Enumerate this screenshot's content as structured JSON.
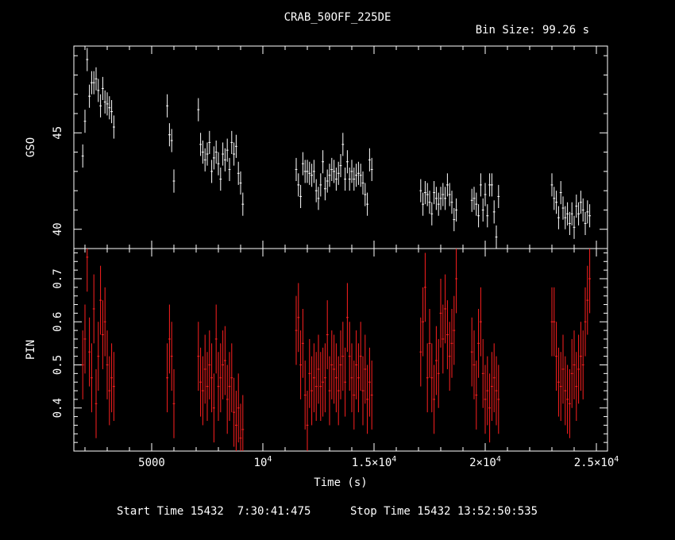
{
  "title": "CRAB_50OFF_225DE",
  "bin_size_label": "Bin Size: 99.26 s",
  "footer": {
    "start": "Start Time 15432  7:30:41:475",
    "stop": "Stop Time 15432 13:52:50:535"
  },
  "chart_data": [
    {
      "type": "scatter",
      "panel": "top",
      "ylabel": "GSO",
      "xlabel": "",
      "xlim": [
        1500,
        25500
      ],
      "ylim": [
        39.0,
        49.5
      ],
      "yticks": [
        {
          "v": 40,
          "label": "40"
        },
        {
          "v": 45,
          "label": "45"
        }
      ],
      "color": "#ffffff",
      "series": [
        {
          "x": [
            1900,
            2000,
            2100,
            2200,
            2300,
            2400,
            2500,
            2600,
            2700,
            2800,
            2900,
            3000,
            3100,
            3200,
            3300,
            5700,
            5800,
            5900,
            6000,
            7100,
            7200,
            7300,
            7400,
            7500,
            7600,
            7700,
            7800,
            7900,
            8000,
            8100,
            8200,
            8300,
            8400,
            8500,
            8600,
            8700,
            8800,
            8900,
            9000,
            9100,
            11500,
            11600,
            11700,
            11800,
            11900,
            12000,
            12100,
            12200,
            12300,
            12400,
            12500,
            12600,
            12700,
            12800,
            12900,
            13000,
            13100,
            13200,
            13300,
            13400,
            13500,
            13600,
            13700,
            13800,
            13900,
            14000,
            14100,
            14200,
            14300,
            14400,
            14500,
            14600,
            14700,
            14800,
            14900,
            17100,
            17200,
            17300,
            17400,
            17500,
            17600,
            17700,
            17800,
            17900,
            18000,
            18100,
            18200,
            18300,
            18400,
            18500,
            18600,
            18700,
            19400,
            19500,
            19600,
            19700,
            19800,
            19900,
            20000,
            20100,
            20200,
            20300,
            20400,
            20500,
            20600,
            23000,
            23100,
            23200,
            23300,
            23400,
            23500,
            23600,
            23700,
            23800,
            23900,
            24000,
            24100,
            24200,
            24300,
            24400,
            24500,
            24600,
            24700
          ],
          "y": [
            43.8,
            45.6,
            48.8,
            46.9,
            47.6,
            47.6,
            47.8,
            47.2,
            46.4,
            47.3,
            46.6,
            46.5,
            46.3,
            46.1,
            45.3,
            46.4,
            44.9,
            44.6,
            42.5,
            46.2,
            44.4,
            44.0,
            43.6,
            43.9,
            44.5,
            43.0,
            43.7,
            44.0,
            43.4,
            42.6,
            43.9,
            43.6,
            44.1,
            43.1,
            44.5,
            43.9,
            44.3,
            42.9,
            42.4,
            41.3,
            43.1,
            42.3,
            41.7,
            43.4,
            43.0,
            43.0,
            42.9,
            42.8,
            43.0,
            42.0,
            41.6,
            42.3,
            43.5,
            42.1,
            42.5,
            42.8,
            43.1,
            43.0,
            42.6,
            42.9,
            43.3,
            44.4,
            42.6,
            43.5,
            42.6,
            43.0,
            42.6,
            42.8,
            42.9,
            42.8,
            42.4,
            41.8,
            41.3,
            43.6,
            43.1,
            42.0,
            41.3,
            41.9,
            41.8,
            41.4,
            40.8,
            41.9,
            41.6,
            41.3,
            41.6,
            41.8,
            41.6,
            42.3,
            41.8,
            41.4,
            40.5,
            41.0,
            41.5,
            41.6,
            41.3,
            40.7,
            42.3,
            41.0,
            41.8,
            40.7,
            42.3,
            42.3,
            40.9,
            39.6,
            41.7,
            42.3,
            41.6,
            41.4,
            40.6,
            41.9,
            41.1,
            40.6,
            40.8,
            40.3,
            40.8,
            40.1,
            41.2,
            40.8,
            41.4,
            41.0,
            40.3,
            40.9,
            40.7
          ],
          "yerr": [
            0.6,
            0.6,
            0.6,
            0.6,
            0.6,
            0.6,
            0.6,
            0.6,
            0.6,
            0.6,
            0.6,
            0.6,
            0.6,
            0.6,
            0.6,
            0.6,
            0.6,
            0.6,
            0.6,
            0.6,
            0.6,
            0.6,
            0.6,
            0.6,
            0.6,
            0.6,
            0.6,
            0.6,
            0.6,
            0.6,
            0.6,
            0.6,
            0.6,
            0.6,
            0.6,
            0.6,
            0.6,
            0.6,
            0.6,
            0.6,
            0.6,
            0.6,
            0.6,
            0.6,
            0.6,
            0.6,
            0.6,
            0.6,
            0.6,
            0.6,
            0.6,
            0.6,
            0.6,
            0.6,
            0.6,
            0.6,
            0.6,
            0.6,
            0.6,
            0.6,
            0.6,
            0.6,
            0.6,
            0.6,
            0.6,
            0.6,
            0.6,
            0.6,
            0.6,
            0.6,
            0.6,
            0.6,
            0.6,
            0.6,
            0.6,
            0.6,
            0.6,
            0.6,
            0.6,
            0.6,
            0.6,
            0.6,
            0.6,
            0.6,
            0.6,
            0.6,
            0.6,
            0.6,
            0.6,
            0.6,
            0.6,
            0.6,
            0.6,
            0.6,
            0.6,
            0.6,
            0.6,
            0.6,
            0.6,
            0.6,
            0.6,
            0.6,
            0.6,
            0.6,
            0.6,
            0.6,
            0.6,
            0.6,
            0.6,
            0.6,
            0.6,
            0.6,
            0.6,
            0.6,
            0.6,
            0.6,
            0.6,
            0.6,
            0.6,
            0.6,
            0.6,
            0.6,
            0.6
          ]
        }
      ]
    },
    {
      "type": "scatter",
      "panel": "bottom",
      "ylabel": "PIN",
      "xlabel": "Time (s)",
      "xlim": [
        1500,
        25500
      ],
      "ylim": [
        0.3,
        0.77
      ],
      "yticks": [
        {
          "v": 0.4,
          "label": "0.4"
        },
        {
          "v": 0.5,
          "label": "0.5"
        },
        {
          "v": 0.6,
          "label": "0.6"
        },
        {
          "v": 0.7,
          "label": "0.7"
        }
      ],
      "xticks": [
        {
          "v": 5000,
          "label": "5000"
        },
        {
          "v": 10000,
          "label": "10",
          "sup": "4"
        },
        {
          "v": 15000,
          "label": "1.5×10",
          "sup": "4"
        },
        {
          "v": 20000,
          "label": "2×10",
          "sup": "4"
        },
        {
          "v": 25000,
          "label": "2.5×10",
          "sup": "4"
        }
      ],
      "color": "#ff2020",
      "series": [
        {
          "x": [
            1900,
            2000,
            2100,
            2200,
            2300,
            2400,
            2500,
            2600,
            2700,
            2800,
            2900,
            3000,
            3100,
            3200,
            3300,
            5700,
            5800,
            5900,
            6000,
            7100,
            7200,
            7300,
            7400,
            7500,
            7600,
            7700,
            7800,
            7900,
            8000,
            8100,
            8200,
            8300,
            8400,
            8500,
            8600,
            8700,
            8800,
            8900,
            9000,
            9100,
            11500,
            11600,
            11700,
            11800,
            11900,
            12000,
            12100,
            12200,
            12300,
            12400,
            12500,
            12600,
            12700,
            12800,
            12900,
            13000,
            13100,
            13200,
            13300,
            13400,
            13500,
            13600,
            13700,
            13800,
            13900,
            14000,
            14100,
            14200,
            14300,
            14400,
            14500,
            14600,
            14700,
            14800,
            14900,
            17100,
            17200,
            17300,
            17400,
            17500,
            17600,
            17700,
            17800,
            17900,
            18000,
            18100,
            18200,
            18300,
            18400,
            18500,
            18600,
            18700,
            19400,
            19500,
            19600,
            19700,
            19800,
            19900,
            20000,
            20100,
            20200,
            20300,
            20400,
            20500,
            20600,
            23000,
            23100,
            23200,
            23300,
            23400,
            23500,
            23600,
            23700,
            23800,
            23900,
            24000,
            24100,
            24200,
            24300,
            24400,
            24500,
            24600,
            24700
          ],
          "y": [
            0.5,
            0.56,
            0.75,
            0.53,
            0.47,
            0.63,
            0.41,
            0.52,
            0.65,
            0.57,
            0.6,
            0.5,
            0.44,
            0.47,
            0.45,
            0.47,
            0.56,
            0.52,
            0.41,
            0.52,
            0.46,
            0.44,
            0.49,
            0.45,
            0.5,
            0.47,
            0.4,
            0.56,
            0.45,
            0.47,
            0.5,
            0.51,
            0.42,
            0.45,
            0.47,
            0.39,
            0.36,
            0.4,
            0.33,
            0.35,
            0.58,
            0.61,
            0.5,
            0.55,
            0.43,
            0.36,
            0.48,
            0.44,
            0.47,
            0.45,
            0.49,
            0.45,
            0.46,
            0.47,
            0.57,
            0.44,
            0.5,
            0.49,
            0.47,
            0.44,
            0.5,
            0.52,
            0.46,
            0.61,
            0.52,
            0.47,
            0.43,
            0.5,
            0.47,
            0.52,
            0.44,
            0.49,
            0.42,
            0.46,
            0.43,
            0.53,
            0.6,
            0.68,
            0.47,
            0.55,
            0.47,
            0.42,
            0.51,
            0.48,
            0.62,
            0.56,
            0.63,
            0.57,
            0.52,
            0.55,
            0.58,
            0.7,
            0.53,
            0.5,
            0.43,
            0.55,
            0.6,
            0.48,
            0.42,
            0.44,
            0.4,
            0.45,
            0.47,
            0.44,
            0.42,
            0.6,
            0.6,
            0.52,
            0.46,
            0.45,
            0.49,
            0.44,
            0.42,
            0.41,
            0.48,
            0.5,
            0.45,
            0.49,
            0.52,
            0.5,
            0.6,
            0.65,
            0.7
          ],
          "yerr": [
            0.08,
            0.08,
            0.08,
            0.08,
            0.08,
            0.08,
            0.08,
            0.08,
            0.08,
            0.08,
            0.08,
            0.08,
            0.08,
            0.08,
            0.08,
            0.08,
            0.08,
            0.08,
            0.08,
            0.08,
            0.08,
            0.08,
            0.08,
            0.08,
            0.08,
            0.08,
            0.08,
            0.08,
            0.08,
            0.08,
            0.08,
            0.08,
            0.08,
            0.08,
            0.08,
            0.08,
            0.08,
            0.08,
            0.08,
            0.08,
            0.08,
            0.08,
            0.08,
            0.08,
            0.08,
            0.08,
            0.08,
            0.08,
            0.08,
            0.08,
            0.08,
            0.08,
            0.08,
            0.08,
            0.08,
            0.08,
            0.08,
            0.08,
            0.08,
            0.08,
            0.08,
            0.08,
            0.08,
            0.08,
            0.08,
            0.08,
            0.08,
            0.08,
            0.08,
            0.08,
            0.08,
            0.08,
            0.08,
            0.08,
            0.08,
            0.08,
            0.08,
            0.08,
            0.08,
            0.08,
            0.08,
            0.08,
            0.08,
            0.08,
            0.08,
            0.08,
            0.08,
            0.08,
            0.08,
            0.08,
            0.08,
            0.08,
            0.08,
            0.08,
            0.08,
            0.08,
            0.08,
            0.08,
            0.08,
            0.08,
            0.08,
            0.08,
            0.08,
            0.08,
            0.08,
            0.08,
            0.08,
            0.08,
            0.08,
            0.08,
            0.08,
            0.08,
            0.08,
            0.08,
            0.08,
            0.08,
            0.08,
            0.08,
            0.08,
            0.08,
            0.08,
            0.08,
            0.08
          ]
        }
      ]
    }
  ]
}
